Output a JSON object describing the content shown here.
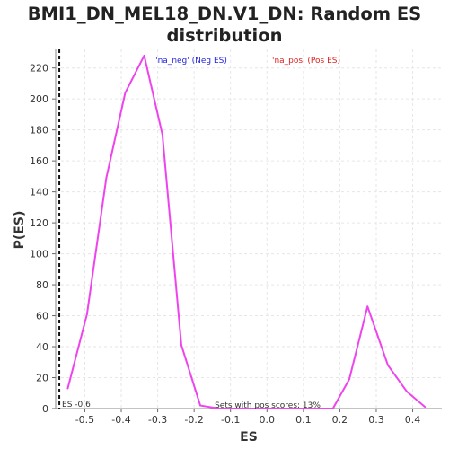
{
  "chart_data": {
    "type": "line",
    "title_line1": "BMI1_DN_MEL18_DN.V1_DN: Random ES",
    "title_line2": "distribution",
    "xlabel": "ES",
    "ylabel": "P(ES)",
    "xlim": [
      -0.58,
      0.48
    ],
    "ylim": [
      0,
      232
    ],
    "x_ticks": [
      "-0.5",
      "-0.4",
      "-0.3",
      "-0.2",
      "-0.1",
      "0.0",
      "0.1",
      "0.2",
      "0.3",
      "0.4"
    ],
    "y_ticks": [
      "0",
      "20",
      "40",
      "60",
      "80",
      "100",
      "120",
      "140",
      "160",
      "180",
      "200",
      "220"
    ],
    "grid": true,
    "legend": {
      "neg_label": "'na_neg' (Neg ES)",
      "pos_label": "'na_pos' (Pos ES)",
      "neg_color": "#2222dd",
      "pos_color": "#dd2222"
    },
    "series": [
      {
        "color": "#ee44ee",
        "x": [
          -0.547,
          -0.494,
          -0.441,
          -0.389,
          -0.337,
          -0.287,
          -0.235,
          -0.183,
          -0.131,
          -0.079,
          -0.027,
          0.025,
          0.077,
          0.129,
          0.181,
          0.226,
          0.276,
          0.332,
          0.384,
          0.434
        ],
        "values": [
          13,
          61,
          149,
          204,
          228,
          177,
          41,
          2,
          0,
          0,
          0,
          0,
          0,
          0,
          0,
          19,
          66,
          28,
          11,
          1
        ]
      }
    ],
    "marker": {
      "x": -0.57,
      "label": "ES -0.6"
    },
    "annotation": "Sets with pos scores: 13%"
  }
}
